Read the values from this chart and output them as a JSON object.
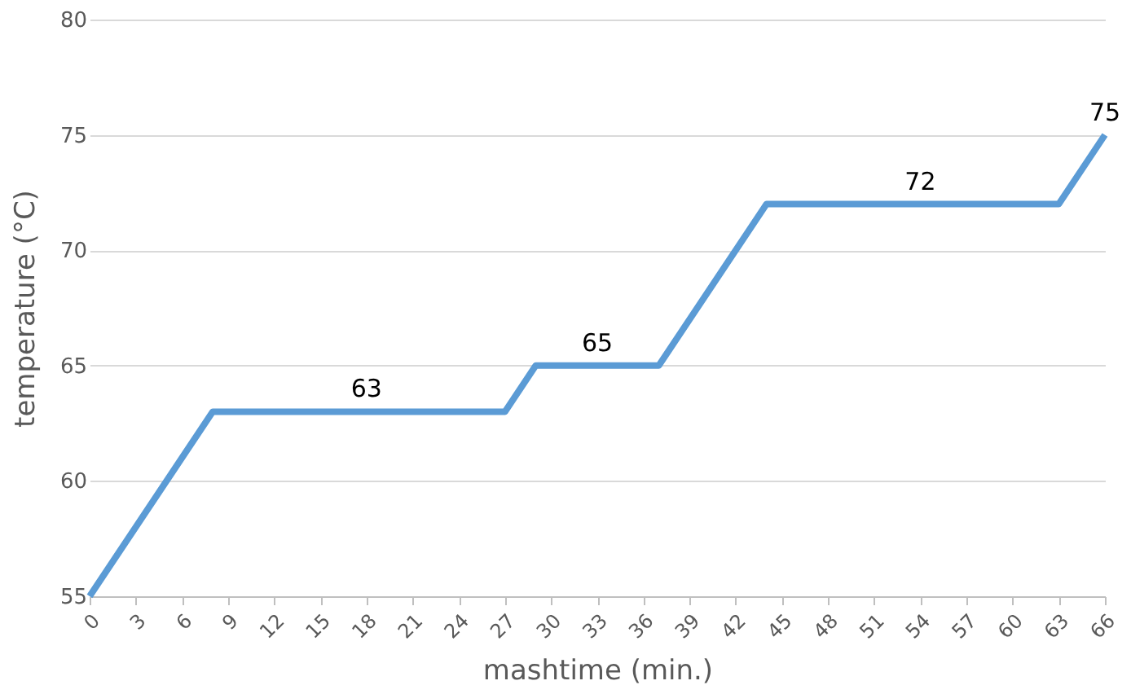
{
  "chart_data": {
    "type": "line",
    "xlabel": "mashtime (min.)",
    "ylabel": "temperature (°C)",
    "x": [
      0,
      8,
      27,
      29,
      37,
      44,
      63,
      66
    ],
    "series": [
      {
        "color": "#5b9bd5",
        "values": [
          55,
          63,
          63,
          65,
          65,
          72,
          72,
          75
        ]
      }
    ],
    "xlim": [
      0,
      66
    ],
    "xticks": [
      0,
      3,
      6,
      9,
      12,
      15,
      18,
      21,
      24,
      27,
      30,
      33,
      36,
      39,
      42,
      45,
      48,
      51,
      54,
      57,
      60,
      63,
      66
    ],
    "ylim": [
      55,
      80
    ],
    "yticks": [
      55,
      60,
      65,
      70,
      75,
      80
    ],
    "grid": "y",
    "legend": false,
    "line_style": "solid",
    "marker": "none",
    "annotations": [
      {
        "text": "63",
        "x": 18,
        "y": 63
      },
      {
        "text": "65",
        "x": 33,
        "y": 65
      },
      {
        "text": "72",
        "x": 54,
        "y": 72
      },
      {
        "text": "75",
        "x": 66,
        "y": 75
      }
    ]
  }
}
